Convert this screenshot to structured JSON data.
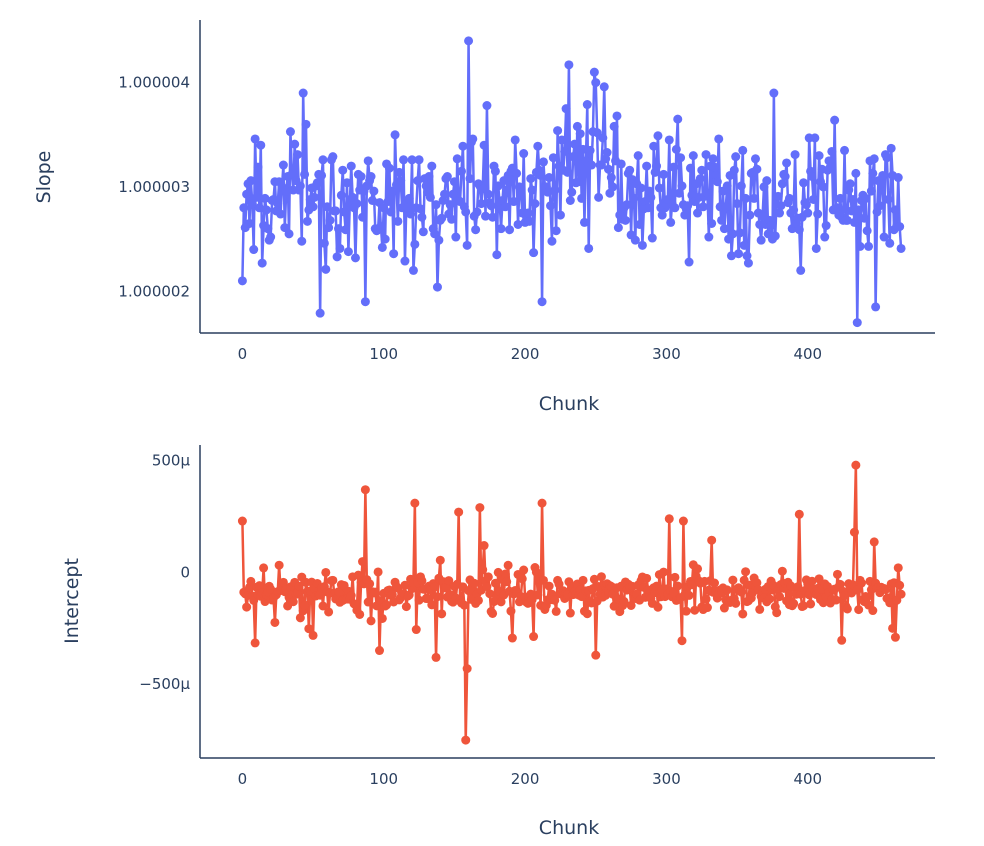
{
  "chart_data": [
    {
      "type": "line",
      "xlabel": "Chunk",
      "ylabel": "Slope",
      "xlim": [
        -30,
        490
      ],
      "ylim": [
        1.0000016,
        1.0000046
      ],
      "x_ticks": [
        0,
        100,
        200,
        300,
        400
      ],
      "x_tick_labels": [
        "0",
        "100",
        "200",
        "300",
        "400"
      ],
      "y_ticks": [
        1.000002,
        1.000003,
        1.000004
      ],
      "y_tick_labels": [
        "1.000002",
        "1.000003",
        "1.000004"
      ],
      "grid": false,
      "colors": {
        "series": "#636efa"
      },
      "series": [
        {
          "x": [],
          "values": []
        }
      ]
    },
    {
      "type": "line",
      "xlabel": "Chunk",
      "ylabel": "Intercept",
      "xlim": [
        -30,
        490
      ],
      "ylim": [
        -0.00083,
        0.00057
      ],
      "x_ticks": [
        0,
        100,
        200,
        300,
        400
      ],
      "x_tick_labels": [
        "0",
        "100",
        "200",
        "300",
        "400"
      ],
      "y_ticks": [
        0.0005,
        0,
        -0.0005
      ],
      "y_tick_labels": [
        "500μ",
        "0",
        "−500μ"
      ],
      "grid": false,
      "colors": {
        "series": "#ef553b"
      },
      "series": [
        {
          "x": [],
          "values": []
        }
      ]
    }
  ]
}
